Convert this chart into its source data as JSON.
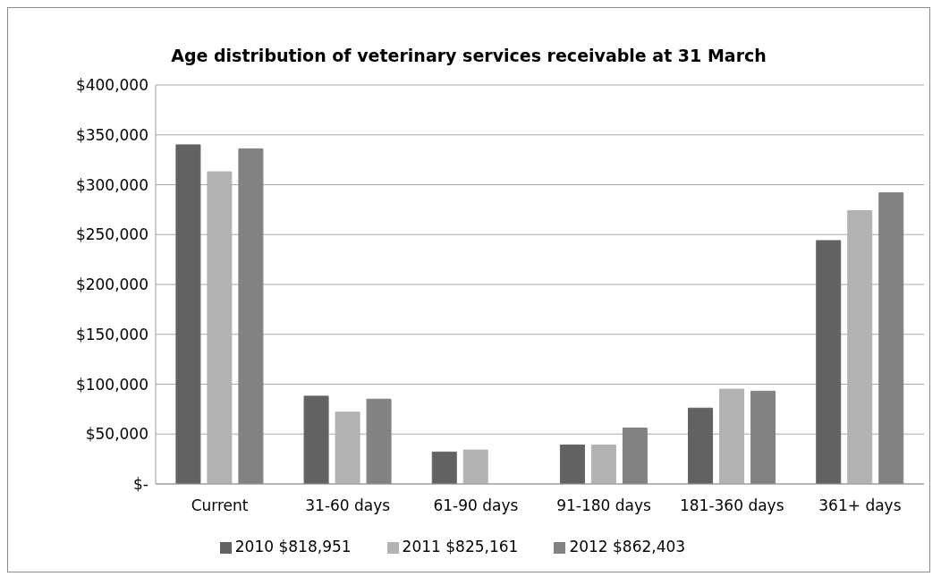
{
  "chart_data": {
    "type": "bar",
    "title": "Age distribution of veterinary services receivable at 31 March",
    "categories": [
      "Current",
      "31-60 days",
      "61-90 days",
      "91-180 days",
      "181-360 days",
      "361+ days"
    ],
    "series": [
      {
        "name": "2010 $818,951",
        "color": "#626262",
        "values": [
          340000,
          88000,
          32000,
          39000,
          76000,
          244000
        ]
      },
      {
        "name": "2011 $825,161",
        "color": "#b2b2b2",
        "values": [
          313000,
          72000,
          34000,
          39000,
          95000,
          274000
        ]
      },
      {
        "name": "2012 $862,403",
        "color": "#828282",
        "values": [
          336000,
          85000,
          0,
          56000,
          93000,
          292000
        ]
      }
    ],
    "ylim": [
      0,
      400000
    ],
    "yticks": [
      {
        "value": 0,
        "label": "$-"
      },
      {
        "value": 50000,
        "label": "$50,000"
      },
      {
        "value": 100000,
        "label": "$100,000"
      },
      {
        "value": 150000,
        "label": "$150,000"
      },
      {
        "value": 200000,
        "label": "$200,000"
      },
      {
        "value": 250000,
        "label": "$250,000"
      },
      {
        "value": 300000,
        "label": "$300,000"
      },
      {
        "value": 350000,
        "label": "$350,000"
      },
      {
        "value": 400000,
        "label": "$400,000"
      }
    ],
    "grid": "y",
    "legend": "bottom"
  }
}
